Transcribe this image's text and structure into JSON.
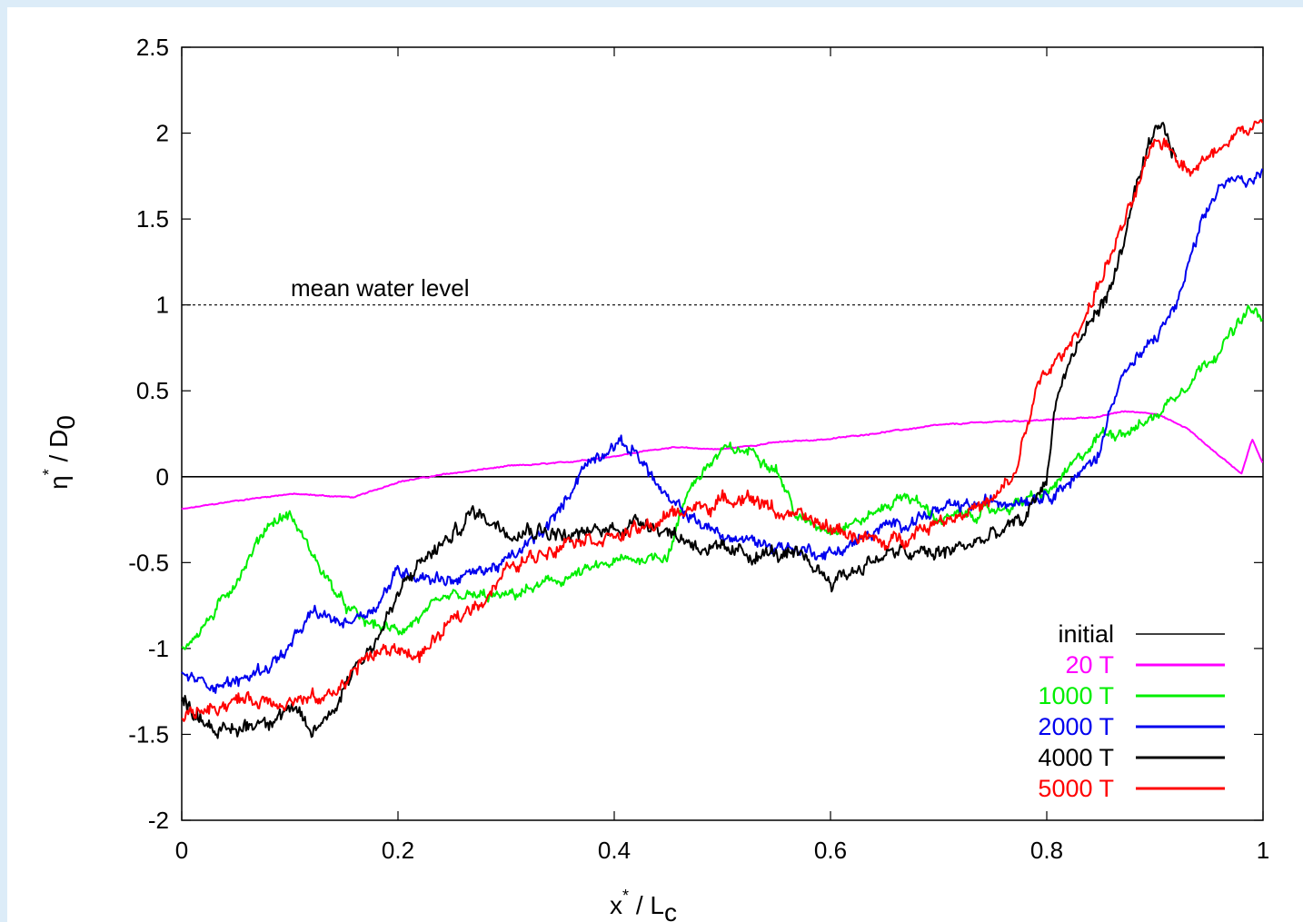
{
  "chart_data": {
    "type": "line",
    "xlabel_main": "x",
    "xlabel_sup": "*",
    "xlabel_div": " / L",
    "xlabel_sub": "c",
    "ylabel_main": "η",
    "ylabel_sup": "*",
    "ylabel_div": " / D",
    "ylabel_sub": "0",
    "xlim": [
      0,
      1
    ],
    "ylim": [
      -2,
      2.5
    ],
    "x_ticks": [
      "0",
      "0.2",
      "0.4",
      "0.6",
      "0.8",
      "1"
    ],
    "y_ticks": [
      "-2",
      "-1.5",
      "-1",
      "-0.5",
      "0",
      "0.5",
      "1",
      "1.5",
      "2",
      "2.5"
    ],
    "grid": false,
    "legend_position": "bottom-right",
    "annotations": [
      {
        "text": "mean water level",
        "y": 1.0,
        "style": "dotted"
      }
    ],
    "series": [
      {
        "name": "initial",
        "color": "#000000",
        "width": 1.6,
        "x": [
          0,
          1
        ],
        "y": [
          0,
          0
        ]
      },
      {
        "name": "20 T",
        "color": "#ff00ff",
        "width": 2,
        "noise": 0.004,
        "x": [
          0,
          0.05,
          0.1,
          0.16,
          0.2,
          0.25,
          0.3,
          0.35,
          0.4,
          0.45,
          0.5,
          0.55,
          0.6,
          0.65,
          0.7,
          0.75,
          0.8,
          0.85,
          0.87,
          0.9,
          0.93,
          0.96,
          0.98,
          0.99,
          1.0
        ],
        "y": [
          -0.19,
          -0.14,
          -0.1,
          -0.12,
          -0.03,
          0.02,
          0.06,
          0.08,
          0.12,
          0.17,
          0.16,
          0.2,
          0.22,
          0.26,
          0.3,
          0.32,
          0.33,
          0.35,
          0.38,
          0.37,
          0.28,
          0.12,
          0.02,
          0.22,
          0.07
        ]
      },
      {
        "name": "1000 T",
        "color": "#00ee00",
        "width": 2,
        "noise": 0.035,
        "x": [
          0,
          0.03,
          0.06,
          0.08,
          0.1,
          0.13,
          0.15,
          0.17,
          0.2,
          0.25,
          0.3,
          0.35,
          0.4,
          0.45,
          0.47,
          0.5,
          0.53,
          0.55,
          0.57,
          0.6,
          0.63,
          0.67,
          0.7,
          0.75,
          0.8,
          0.83,
          0.85,
          0.88,
          0.9,
          0.93,
          0.96,
          0.99,
          1.0
        ],
        "y": [
          -1.0,
          -0.8,
          -0.5,
          -0.27,
          -0.22,
          -0.55,
          -0.75,
          -0.85,
          -0.9,
          -0.7,
          -0.7,
          -0.6,
          -0.5,
          -0.45,
          -0.05,
          0.15,
          0.15,
          0.05,
          -0.25,
          -0.3,
          -0.25,
          -0.1,
          -0.25,
          -0.2,
          -0.1,
          0.1,
          0.25,
          0.28,
          0.35,
          0.55,
          0.75,
          0.98,
          0.9
        ]
      },
      {
        "name": "2000 T",
        "color": "#0000ee",
        "width": 2,
        "noise": 0.04,
        "x": [
          0,
          0.02,
          0.05,
          0.08,
          0.1,
          0.12,
          0.15,
          0.18,
          0.2,
          0.25,
          0.3,
          0.33,
          0.35,
          0.37,
          0.4,
          0.42,
          0.45,
          0.5,
          0.55,
          0.6,
          0.65,
          0.7,
          0.75,
          0.8,
          0.83,
          0.85,
          0.86,
          0.87,
          0.88,
          0.9,
          0.92,
          0.94,
          0.96,
          0.98,
          1.0
        ],
        "y": [
          -1.15,
          -1.2,
          -1.2,
          -1.1,
          -1.0,
          -0.8,
          -0.85,
          -0.75,
          -0.55,
          -0.6,
          -0.5,
          -0.35,
          -0.2,
          0.05,
          0.2,
          0.15,
          -0.15,
          -0.35,
          -0.4,
          -0.45,
          -0.3,
          -0.2,
          -0.15,
          -0.1,
          0.0,
          0.15,
          0.45,
          0.6,
          0.65,
          0.8,
          1.0,
          1.4,
          1.7,
          1.72,
          1.78
        ]
      },
      {
        "name": "4000 T",
        "color": "#000000",
        "width": 2,
        "noise": 0.05,
        "x": [
          0,
          0.02,
          0.04,
          0.06,
          0.08,
          0.1,
          0.12,
          0.14,
          0.16,
          0.18,
          0.2,
          0.22,
          0.25,
          0.27,
          0.3,
          0.33,
          0.36,
          0.4,
          0.43,
          0.46,
          0.5,
          0.55,
          0.58,
          0.6,
          0.62,
          0.65,
          0.7,
          0.75,
          0.78,
          0.8,
          0.81,
          0.82,
          0.84,
          0.86,
          0.88,
          0.9,
          0.91,
          0.92
        ],
        "y": [
          -1.3,
          -1.4,
          -1.5,
          -1.45,
          -1.4,
          -1.35,
          -1.5,
          -1.35,
          -1.1,
          -0.95,
          -0.7,
          -0.5,
          -0.35,
          -0.2,
          -0.3,
          -0.3,
          -0.35,
          -0.3,
          -0.25,
          -0.35,
          -0.45,
          -0.45,
          -0.5,
          -0.6,
          -0.55,
          -0.45,
          -0.45,
          -0.35,
          -0.25,
          0.0,
          0.5,
          0.65,
          0.9,
          1.1,
          1.6,
          2.0,
          2.0,
          1.85
        ]
      },
      {
        "name": "5000 T",
        "color": "#ff0000",
        "width": 2,
        "noise": 0.045,
        "x": [
          0,
          0.02,
          0.05,
          0.08,
          0.1,
          0.13,
          0.15,
          0.17,
          0.2,
          0.22,
          0.25,
          0.28,
          0.3,
          0.33,
          0.36,
          0.4,
          0.43,
          0.46,
          0.5,
          0.52,
          0.55,
          0.6,
          0.63,
          0.65,
          0.7,
          0.75,
          0.77,
          0.78,
          0.79,
          0.8,
          0.82,
          0.84,
          0.86,
          0.88,
          0.9,
          0.91,
          0.93,
          0.95,
          0.97,
          1.0
        ],
        "y": [
          -1.4,
          -1.35,
          -1.3,
          -1.3,
          -1.3,
          -1.3,
          -1.2,
          -1.05,
          -1.0,
          -1.05,
          -0.85,
          -0.7,
          -0.55,
          -0.45,
          -0.35,
          -0.35,
          -0.3,
          -0.2,
          -0.15,
          -0.1,
          -0.2,
          -0.3,
          -0.35,
          -0.4,
          -0.25,
          -0.15,
          0.0,
          0.25,
          0.5,
          0.6,
          0.75,
          1.0,
          1.3,
          1.6,
          1.95,
          1.95,
          1.8,
          1.85,
          2.0,
          2.05
        ]
      }
    ]
  }
}
